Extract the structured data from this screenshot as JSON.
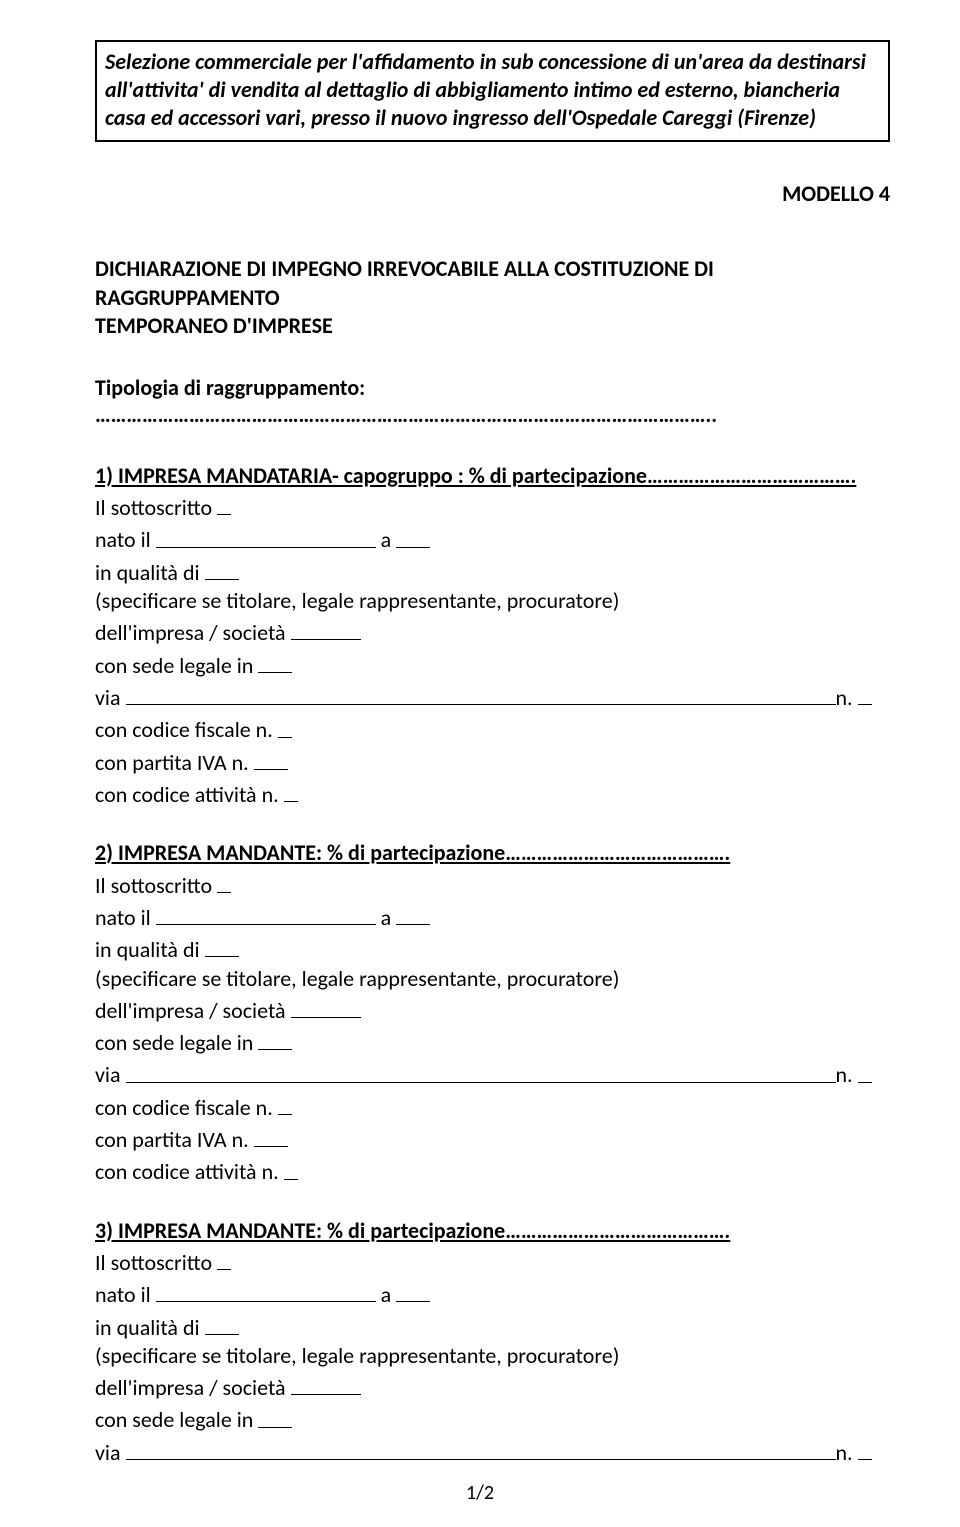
{
  "header": {
    "text": "Selezione commerciale per  l'affidamento  in  sub concessione di un'area da destinarsi all'attivita' di vendita al dettaglio di abbigliamento intimo ed esterno, biancheria casa ed accessori vari,  presso il nuovo ingresso dell'Ospedale Careggi (Firenze)"
  },
  "modello": "MODELLO 4",
  "declaration": {
    "line1": "DICHIARAZIONE DI IMPEGNO IRREVOCABILE ALLA COSTITUZIONE DI RAGGRUPPAMENTO",
    "line2": "TEMPORANEO D'IMPRESE"
  },
  "tipologia_label": "Tipologia di raggruppamento: ………………………………………………………………………………………………………..",
  "sections": [
    {
      "head": "1) IMPRESA MANDATARIA- capogruppo : % di partecipazione………………………………….",
      "sottoscritto": "Il sottoscritto ",
      "nato_il": "nato il ",
      "a": " a ",
      "in_qualita": "in qualità di ",
      "specificare": "(specificare se titolare, legale rappresentante, procuratore)",
      "dell_impresa": "dell'impresa / società ",
      "sede_legale": "con sede legale in ",
      "via": "via ",
      "n": "n. ",
      "codice_fiscale": "con codice fiscale n. ",
      "partita_iva": "con partita IVA n. ",
      "codice_attivita": "con codice attività n. "
    },
    {
      "head": "2) IMPRESA MANDANTE: % di partecipazione…………………………………….",
      "sottoscritto": "Il sottoscritto ",
      "nato_il": "nato il ",
      "a": " a ",
      "in_qualita": "in qualità di ",
      "specificare": "(specificare se titolare, legale rappresentante, procuratore)",
      "dell_impresa": "dell'impresa / società ",
      "sede_legale": "con sede legale in ",
      "via": "via ",
      "n": "n. ",
      "codice_fiscale": "con codice fiscale n. ",
      "partita_iva": "con partita IVA n. ",
      "codice_attivita": "con codice attività n. "
    },
    {
      "head": "3) IMPRESA MANDANTE: % di partecipazione…………………………………….",
      "sottoscritto": "Il sottoscritto ",
      "nato_il": "nato il ",
      "a": " a ",
      "in_qualita": "in qualità di ",
      "specificare": "(specificare se titolare, legale rappresentante, procuratore)",
      "dell_impresa": "dell'impresa / società ",
      "sede_legale": "con sede legale in ",
      "via": "via ",
      "n": "n. "
    }
  ],
  "page_number": "1/2"
}
